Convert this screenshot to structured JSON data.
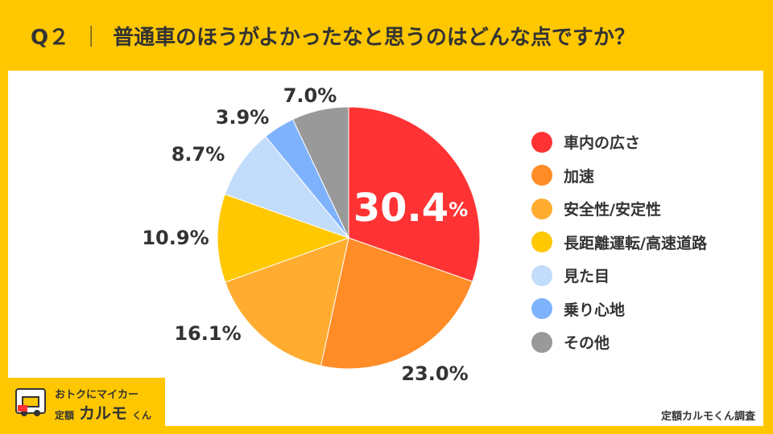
{
  "header": {
    "question_id": "Q２",
    "separator": "｜",
    "question_text": "普通車のほうがよかったなと思うのはどんな点ですか？"
  },
  "chart_data": {
    "type": "pie",
    "title": "普通車のほうがよかったなと思うのはどんな点ですか？",
    "categories": [
      "車内の広さ",
      "加速",
      "安全性/安定性",
      "長距離運転/高速道路",
      "見た目",
      "乗り心地",
      "その他"
    ],
    "values": [
      30.4,
      23.0,
      16.1,
      10.9,
      8.7,
      3.9,
      7.0
    ],
    "labels": [
      "30.4%",
      "23.0%",
      "16.1%",
      "10.9%",
      "8.7%",
      "3.9%",
      "7.0%"
    ],
    "colors": [
      "#FF3333",
      "#FF8C26",
      "#FFAC30",
      "#FFC800",
      "#C2DCFB",
      "#7FB2FC",
      "#999999"
    ],
    "legend_position": "right",
    "start_angle": "12 o'clock, clockwise"
  },
  "logo": {
    "tagline": "おトクにマイカー",
    "brand_prefix": "定額",
    "brand_name": "カルモ",
    "brand_suffix": "くん"
  },
  "footer": {
    "source": "定額カルモくん調査"
  }
}
